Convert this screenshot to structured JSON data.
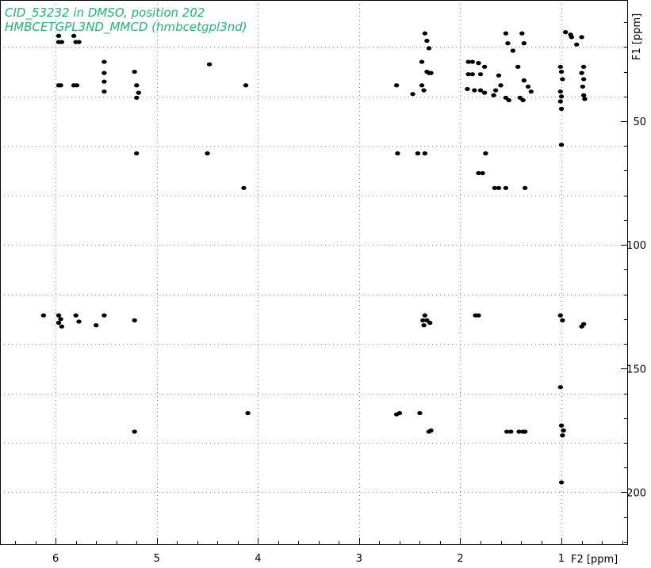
{
  "title": {
    "line1": "CID_53232 in DMSO, position 202",
    "line2": "HMBCETGPL3ND_MMCD (hmbcetgpl3nd)",
    "color": "#1fb86f"
  },
  "chart_data": {
    "type": "scatter",
    "xlabel": "F2 [ppm]",
    "ylabel": "F1 [ppm]",
    "xlim": [
      6.55,
      0.35
    ],
    "ylim": [
      1.0,
      221.0
    ],
    "x_reversed": true,
    "y_reversed": true,
    "grid": true,
    "x_ticks": [
      6,
      5,
      4,
      3,
      2,
      1
    ],
    "y_ticks": [
      50,
      100,
      150,
      200
    ],
    "x_grid": [
      6,
      5,
      4,
      3,
      2,
      1
    ],
    "y_grid": [
      20,
      40,
      60,
      80,
      100,
      120,
      140,
      160,
      180,
      200
    ],
    "series": [
      {
        "points": [
          [
            5.97,
            15.5
          ],
          [
            5.82,
            15.5
          ],
          [
            6.12,
            128.5
          ],
          [
            5.97,
            18.0
          ],
          [
            5.94,
            18.0
          ],
          [
            5.8,
            18.0
          ],
          [
            5.77,
            18.0
          ],
          [
            5.52,
            26.0
          ],
          [
            5.52,
            30.5
          ],
          [
            5.52,
            34.0
          ],
          [
            5.52,
            38.0
          ],
          [
            5.22,
            30.0
          ],
          [
            5.2,
            35.5
          ],
          [
            5.18,
            38.5
          ],
          [
            5.2,
            40.5
          ],
          [
            5.97,
            35.5
          ],
          [
            5.95,
            35.5
          ],
          [
            5.82,
            35.5
          ],
          [
            5.79,
            35.5
          ],
          [
            5.2,
            63.0
          ],
          [
            4.48,
            27.0
          ],
          [
            4.5,
            63.0
          ],
          [
            4.12,
            35.5
          ],
          [
            4.14,
            77.0
          ],
          [
            4.1,
            168.0
          ],
          [
            5.97,
            128.5
          ],
          [
            5.95,
            130.0
          ],
          [
            5.97,
            131.5
          ],
          [
            5.94,
            133.0
          ],
          [
            5.8,
            128.5
          ],
          [
            5.77,
            131.0
          ],
          [
            5.6,
            132.5
          ],
          [
            5.52,
            128.5
          ],
          [
            5.22,
            130.5
          ],
          [
            5.22,
            175.5
          ],
          [
            2.63,
            35.5
          ],
          [
            2.62,
            63.0
          ],
          [
            2.6,
            168.0
          ],
          [
            2.63,
            168.5
          ],
          [
            2.42,
            63.0
          ],
          [
            2.4,
            168.0
          ],
          [
            2.35,
            63.0
          ],
          [
            2.47,
            39.0
          ],
          [
            2.38,
            35.5
          ],
          [
            2.36,
            37.5
          ],
          [
            2.35,
            14.5
          ],
          [
            2.33,
            17.5
          ],
          [
            2.31,
            20.5
          ],
          [
            2.38,
            26.0
          ],
          [
            2.33,
            30.0
          ],
          [
            2.31,
            30.5
          ],
          [
            2.29,
            30.5
          ],
          [
            2.35,
            128.5
          ],
          [
            2.37,
            130.5
          ],
          [
            2.33,
            130.5
          ],
          [
            2.3,
            131.5
          ],
          [
            2.36,
            132.5
          ],
          [
            2.29,
            175.0
          ],
          [
            2.31,
            175.5
          ],
          [
            1.92,
            26.0
          ],
          [
            1.88,
            26.0
          ],
          [
            1.92,
            31.0
          ],
          [
            1.88,
            31.0
          ],
          [
            1.82,
            26.5
          ],
          [
            1.8,
            31.0
          ],
          [
            1.76,
            28.0
          ],
          [
            1.93,
            37.0
          ],
          [
            1.86,
            37.5
          ],
          [
            1.8,
            37.5
          ],
          [
            1.76,
            38.5
          ],
          [
            1.62,
            31.5
          ],
          [
            1.6,
            35.5
          ],
          [
            1.65,
            37.5
          ],
          [
            1.67,
            39.5
          ],
          [
            1.55,
            14.5
          ],
          [
            1.53,
            18.5
          ],
          [
            1.55,
            40.5
          ],
          [
            1.52,
            41.5
          ],
          [
            1.39,
            14.5
          ],
          [
            1.37,
            18.5
          ],
          [
            1.41,
            40.5
          ],
          [
            1.38,
            41.5
          ],
          [
            1.48,
            21.5
          ],
          [
            1.43,
            28.0
          ],
          [
            1.37,
            33.5
          ],
          [
            1.33,
            36.0
          ],
          [
            1.3,
            38.0
          ],
          [
            1.82,
            71.0
          ],
          [
            1.78,
            71.0
          ],
          [
            1.75,
            63.0
          ],
          [
            1.66,
            77.0
          ],
          [
            1.62,
            77.0
          ],
          [
            1.55,
            77.0
          ],
          [
            1.36,
            77.0
          ],
          [
            1.85,
            128.5
          ],
          [
            1.82,
            128.5
          ],
          [
            1.54,
            175.5
          ],
          [
            1.5,
            175.5
          ],
          [
            1.42,
            175.5
          ],
          [
            1.38,
            175.5
          ],
          [
            1.36,
            175.5
          ],
          [
            1.01,
            28.0
          ],
          [
            1.0,
            30.0
          ],
          [
            0.99,
            33.0
          ],
          [
            1.01,
            38.0
          ],
          [
            1.0,
            40.0
          ],
          [
            1.01,
            42.0
          ],
          [
            1.0,
            45.0
          ],
          [
            1.0,
            59.5
          ],
          [
            1.01,
            157.5
          ],
          [
            1.0,
            173.0
          ],
          [
            0.98,
            175.0
          ],
          [
            0.99,
            177.0
          ],
          [
            1.0,
            196.0
          ],
          [
            1.01,
            128.5
          ],
          [
            0.99,
            130.5
          ],
          [
            0.96,
            14.0
          ],
          [
            0.91,
            15.0
          ],
          [
            0.85,
            19.0
          ],
          [
            0.9,
            16.0
          ],
          [
            0.8,
            16.0
          ],
          [
            0.78,
            28.0
          ],
          [
            0.8,
            30.5
          ],
          [
            0.78,
            33.0
          ],
          [
            0.79,
            36.0
          ],
          [
            0.78,
            39.5
          ],
          [
            0.77,
            41.0
          ],
          [
            0.78,
            132.0
          ],
          [
            0.8,
            133.0
          ]
        ]
      }
    ]
  }
}
